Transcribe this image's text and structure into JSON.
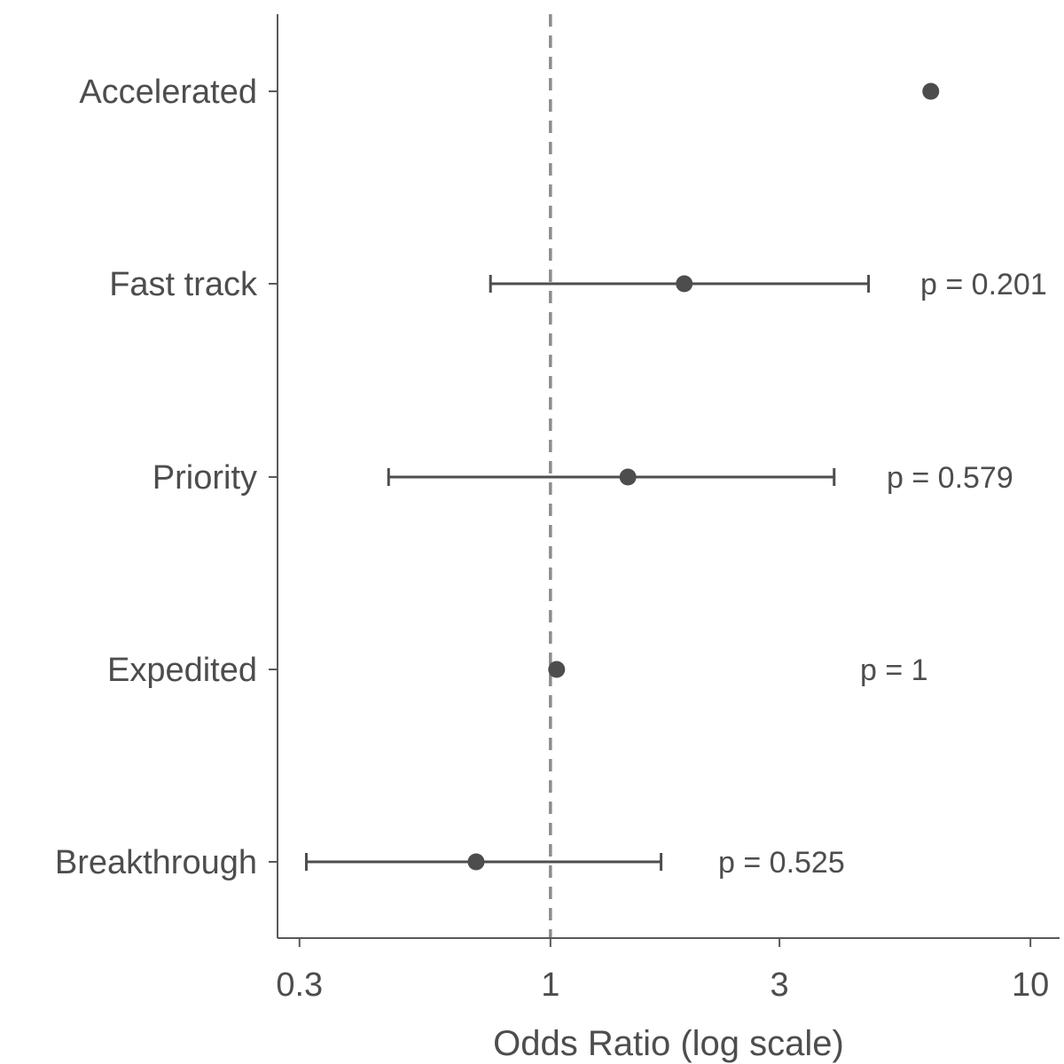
{
  "chart_data": {
    "type": "forest",
    "title": "",
    "xlabel": "Odds Ratio (log scale)",
    "ylabel": "",
    "x_scale": "log",
    "xlim": [
      0.27,
      11.5
    ],
    "x_ticks": [
      0.3,
      1,
      3,
      10
    ],
    "x_tick_labels": [
      "0.3",
      "1",
      "3",
      "10"
    ],
    "reference_line": 1,
    "grid": false,
    "rows": [
      {
        "label": "Accelerated",
        "estimate": 6.2,
        "lower": null,
        "upper": null,
        "p_label": ""
      },
      {
        "label": "Fast track",
        "estimate": 1.9,
        "lower": 0.75,
        "upper": 4.6,
        "p_label": "p = 0.201"
      },
      {
        "label": "Priority",
        "estimate": 1.45,
        "lower": 0.46,
        "upper": 3.9,
        "p_label": "p = 0.579"
      },
      {
        "label": "Expedited",
        "estimate": 1.03,
        "lower": null,
        "upper": null,
        "p_label": "p = 1"
      },
      {
        "label": "Breakthrough",
        "estimate": 0.7,
        "lower": 0.31,
        "upper": 1.7,
        "p_label": "p = 0.525"
      }
    ]
  }
}
